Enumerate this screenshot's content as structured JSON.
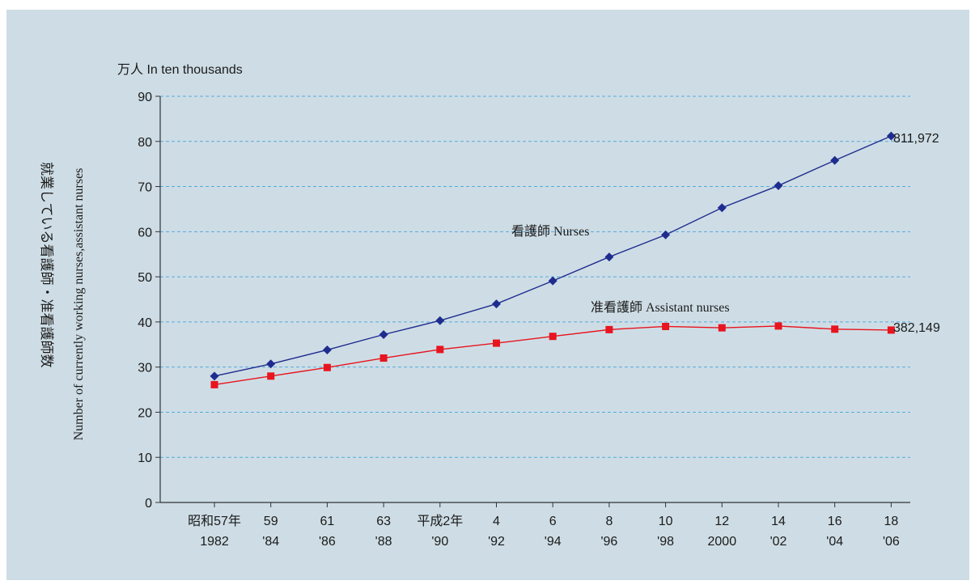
{
  "colors": {
    "panel_background": "#cedde5",
    "nurses": "#1f2c8f",
    "assistant_nurses": "#e8141e",
    "gridline": "#55aadd"
  },
  "chart_data": {
    "type": "line",
    "unit_label": "万人 In ten thousands",
    "ylabel_ja": "就業している看護師・准看護師数",
    "ylabel_en": "Number of currently working nurses,assistant nurses",
    "ylim": [
      0,
      90
    ],
    "yticks": [
      "0",
      "10",
      "20",
      "30",
      "40",
      "50",
      "60",
      "70",
      "80",
      "90"
    ],
    "grid": true,
    "categories": [
      {
        "top": "昭和57年",
        "bottom": "1982"
      },
      {
        "top": "59",
        "bottom": "'84"
      },
      {
        "top": "61",
        "bottom": "'86"
      },
      {
        "top": "63",
        "bottom": "'88"
      },
      {
        "top": "平成2年",
        "bottom": "'90"
      },
      {
        "top": "4",
        "bottom": "'92"
      },
      {
        "top": "6",
        "bottom": "'94"
      },
      {
        "top": "8",
        "bottom": "'96"
      },
      {
        "top": "10",
        "bottom": "'98"
      },
      {
        "top": "12",
        "bottom": "2000"
      },
      {
        "top": "14",
        "bottom": "'02"
      },
      {
        "top": "16",
        "bottom": "'04"
      },
      {
        "top": "18",
        "bottom": "'06"
      }
    ],
    "series": [
      {
        "name": "看護師 Nurses",
        "marker": "diamond",
        "values": [
          28.0,
          30.7,
          33.8,
          37.2,
          40.3,
          44.0,
          49.1,
          54.4,
          59.3,
          65.3,
          70.2,
          75.8,
          81.2
        ],
        "end_label": "811,972"
      },
      {
        "name": "准看護師 Assistant nurses",
        "marker": "square",
        "values": [
          26.1,
          28.0,
          29.9,
          32.0,
          33.9,
          35.3,
          36.8,
          38.3,
          39.0,
          38.7,
          39.1,
          38.4,
          38.2
        ],
        "end_label": "382,149"
      }
    ]
  }
}
